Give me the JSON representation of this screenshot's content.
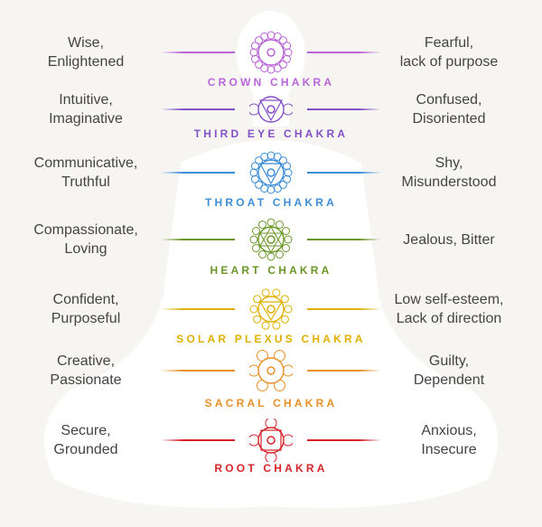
{
  "chakras": [
    {
      "name": "CROWN CHAKRA",
      "left": [
        "Wise,",
        "Enlightened"
      ],
      "right": [
        "Fearful,",
        "lack of purpose"
      ],
      "color": "#b865d8",
      "icon": "crown-chakra-lotus-icon"
    },
    {
      "name": "THIRD EYE CHAKRA",
      "left": [
        "Intuitive,",
        "Imaginative"
      ],
      "right": [
        "Confused,",
        "Disoriented"
      ],
      "color": "#8450c8",
      "icon": "third-eye-chakra-icon"
    },
    {
      "name": "THROAT CHAKRA",
      "left": [
        "Communicative,",
        "Truthful"
      ],
      "right": [
        "Shy,",
        "Misunderstood"
      ],
      "color": "#3d8ed8",
      "icon": "throat-chakra-icon"
    },
    {
      "name": "HEART CHAKRA",
      "left": [
        "Compassionate,",
        "Loving"
      ],
      "right": [
        "Jealous, Bitter"
      ],
      "color": "#6a9628",
      "icon": "heart-chakra-icon"
    },
    {
      "name": "SOLAR PLEXUS CHAKRA",
      "left": [
        "Confident,",
        "Purposeful"
      ],
      "right": [
        "Low self-esteem,",
        "Lack of direction"
      ],
      "color": "#e0b000",
      "icon": "solar-plexus-chakra-icon"
    },
    {
      "name": "SACRAL CHAKRA",
      "left": [
        "Creative,",
        "Passionate"
      ],
      "right": [
        "Guilty,",
        "Dependent"
      ],
      "color": "#e88f28",
      "icon": "sacral-chakra-icon"
    },
    {
      "name": "ROOT CHAKRA",
      "left": [
        "Secure,",
        "Grounded"
      ],
      "right": [
        "Anxious,",
        "Insecure"
      ],
      "color": "#d52428",
      "icon": "root-chakra-icon"
    }
  ]
}
